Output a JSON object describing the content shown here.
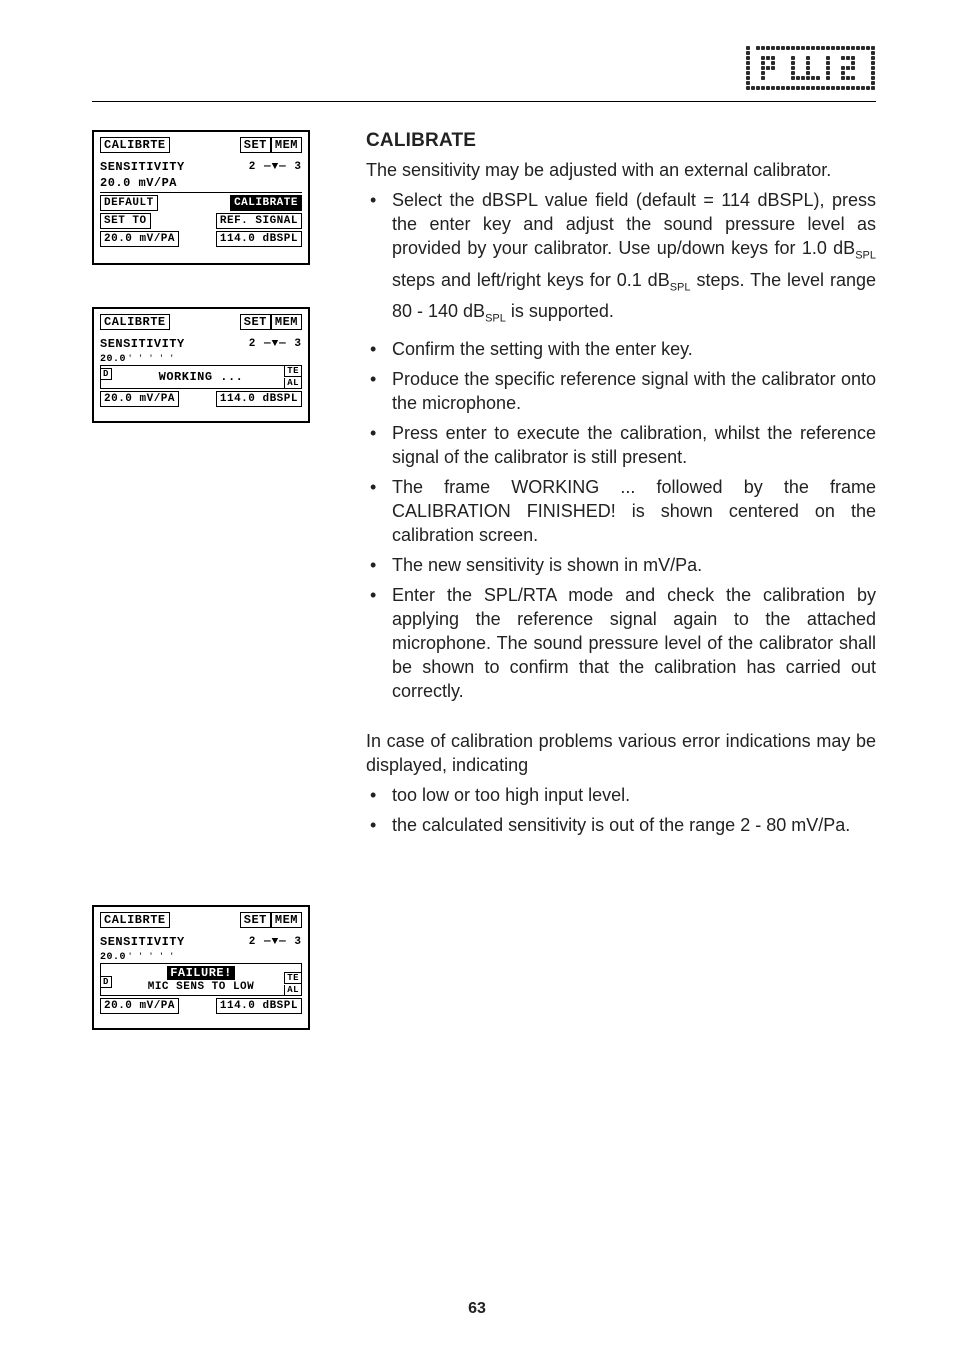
{
  "page_number": "63",
  "logo": {
    "rows": 9,
    "cols": 26,
    "pattern": [
      "1.111111111111111111111111",
      "1........................1",
      "1..111...1..1...1..111...1",
      "1..1.1...1..1...1....1...1",
      "1..111...1..1...1..111...1",
      "1..1.....1..1...1..1.....1",
      "1..1.....111111.1..111...1",
      "1........................1",
      "11111111111111111111111111"
    ]
  },
  "lcd_panels": {
    "calibrate_default": {
      "tab_left": "CALIBRTE",
      "tab_set": "SET",
      "tab_mem": "MEM",
      "sensitivity_label": "SENSITIVITY",
      "scale": "2 —▼— 3",
      "value": "20.0 mV/PA",
      "left_1": "DEFAULT",
      "left_2": "SET TO",
      "left_3": "20.0 mV/PA",
      "right_1": "CALIBRATE",
      "right_2": "REF. SIGNAL",
      "right_3": "114.0 dBSPL"
    },
    "working": {
      "tab_left": "CALIBRTE",
      "tab_set": "SET",
      "tab_mem": "MEM",
      "sensitivity_label": "SENSITIVITY",
      "scale": "2 —▼— 3",
      "partial": "20.0",
      "status": "WORKING ...",
      "left_d": "D",
      "right_te": "TE",
      "right_al": "AL",
      "bottom_left": "20.0 mV/PA",
      "bottom_right": "114.0 dBSPL"
    },
    "failure": {
      "tab_left": "CALIBRTE",
      "tab_set": "SET",
      "tab_mem": "MEM",
      "sensitivity_label": "SENSITIVITY",
      "scale": "2 —▼— 3",
      "partial": "20.0",
      "status": "FAILURE!",
      "mic_line": "MIC SENS TO LOW",
      "left_d": "D",
      "right_te": "TE",
      "right_al": "AL",
      "bottom_left": "20.0 mV/PA",
      "bottom_right": "114.0 dBSPL"
    }
  },
  "body": {
    "heading": "CALIBRATE",
    "intro": "The sensitivity may be adjusted with an external calibrator.",
    "bullets_main": [
      "Select the dBSPL value field (default = 114 dBSPL), press the enter key and adjust the sound pressure level as provided by your calibrator. Use up/down keys for 1.0 dB",
      " steps and left/right keys for 0.1 dB",
      " steps. The level range 80 - 140 dB",
      " is supported."
    ],
    "sub_spl": "SPL",
    "bullet2": "Confirm the setting with the enter key.",
    "bullet3": "Produce the specific reference signal with the calibrator onto the microphone.",
    "bullet4": "Press enter to execute the calibration, whilst the reference signal of the calibrator is still present.",
    "bullet5": "The frame WORKING ... followed by the frame CALIBRATION FINISHED! is shown centered on the calibration screen.",
    "bullet6": "The new sensitivity is shown in mV/Pa.",
    "bullet7": "Enter the SPL/RTA mode and check the calibration by applying the reference signal again to the attached microphone. The sound pressure level of the calibrator shall be shown to confirm that the calibration has carried out correctly.",
    "errors_intro": "In case of calibration problems various error indications may be displayed, indicating",
    "err1": "too low or too high input level.",
    "err2": "the calculated sensitivity is out of the range 2 - 80 mV/Pa."
  }
}
